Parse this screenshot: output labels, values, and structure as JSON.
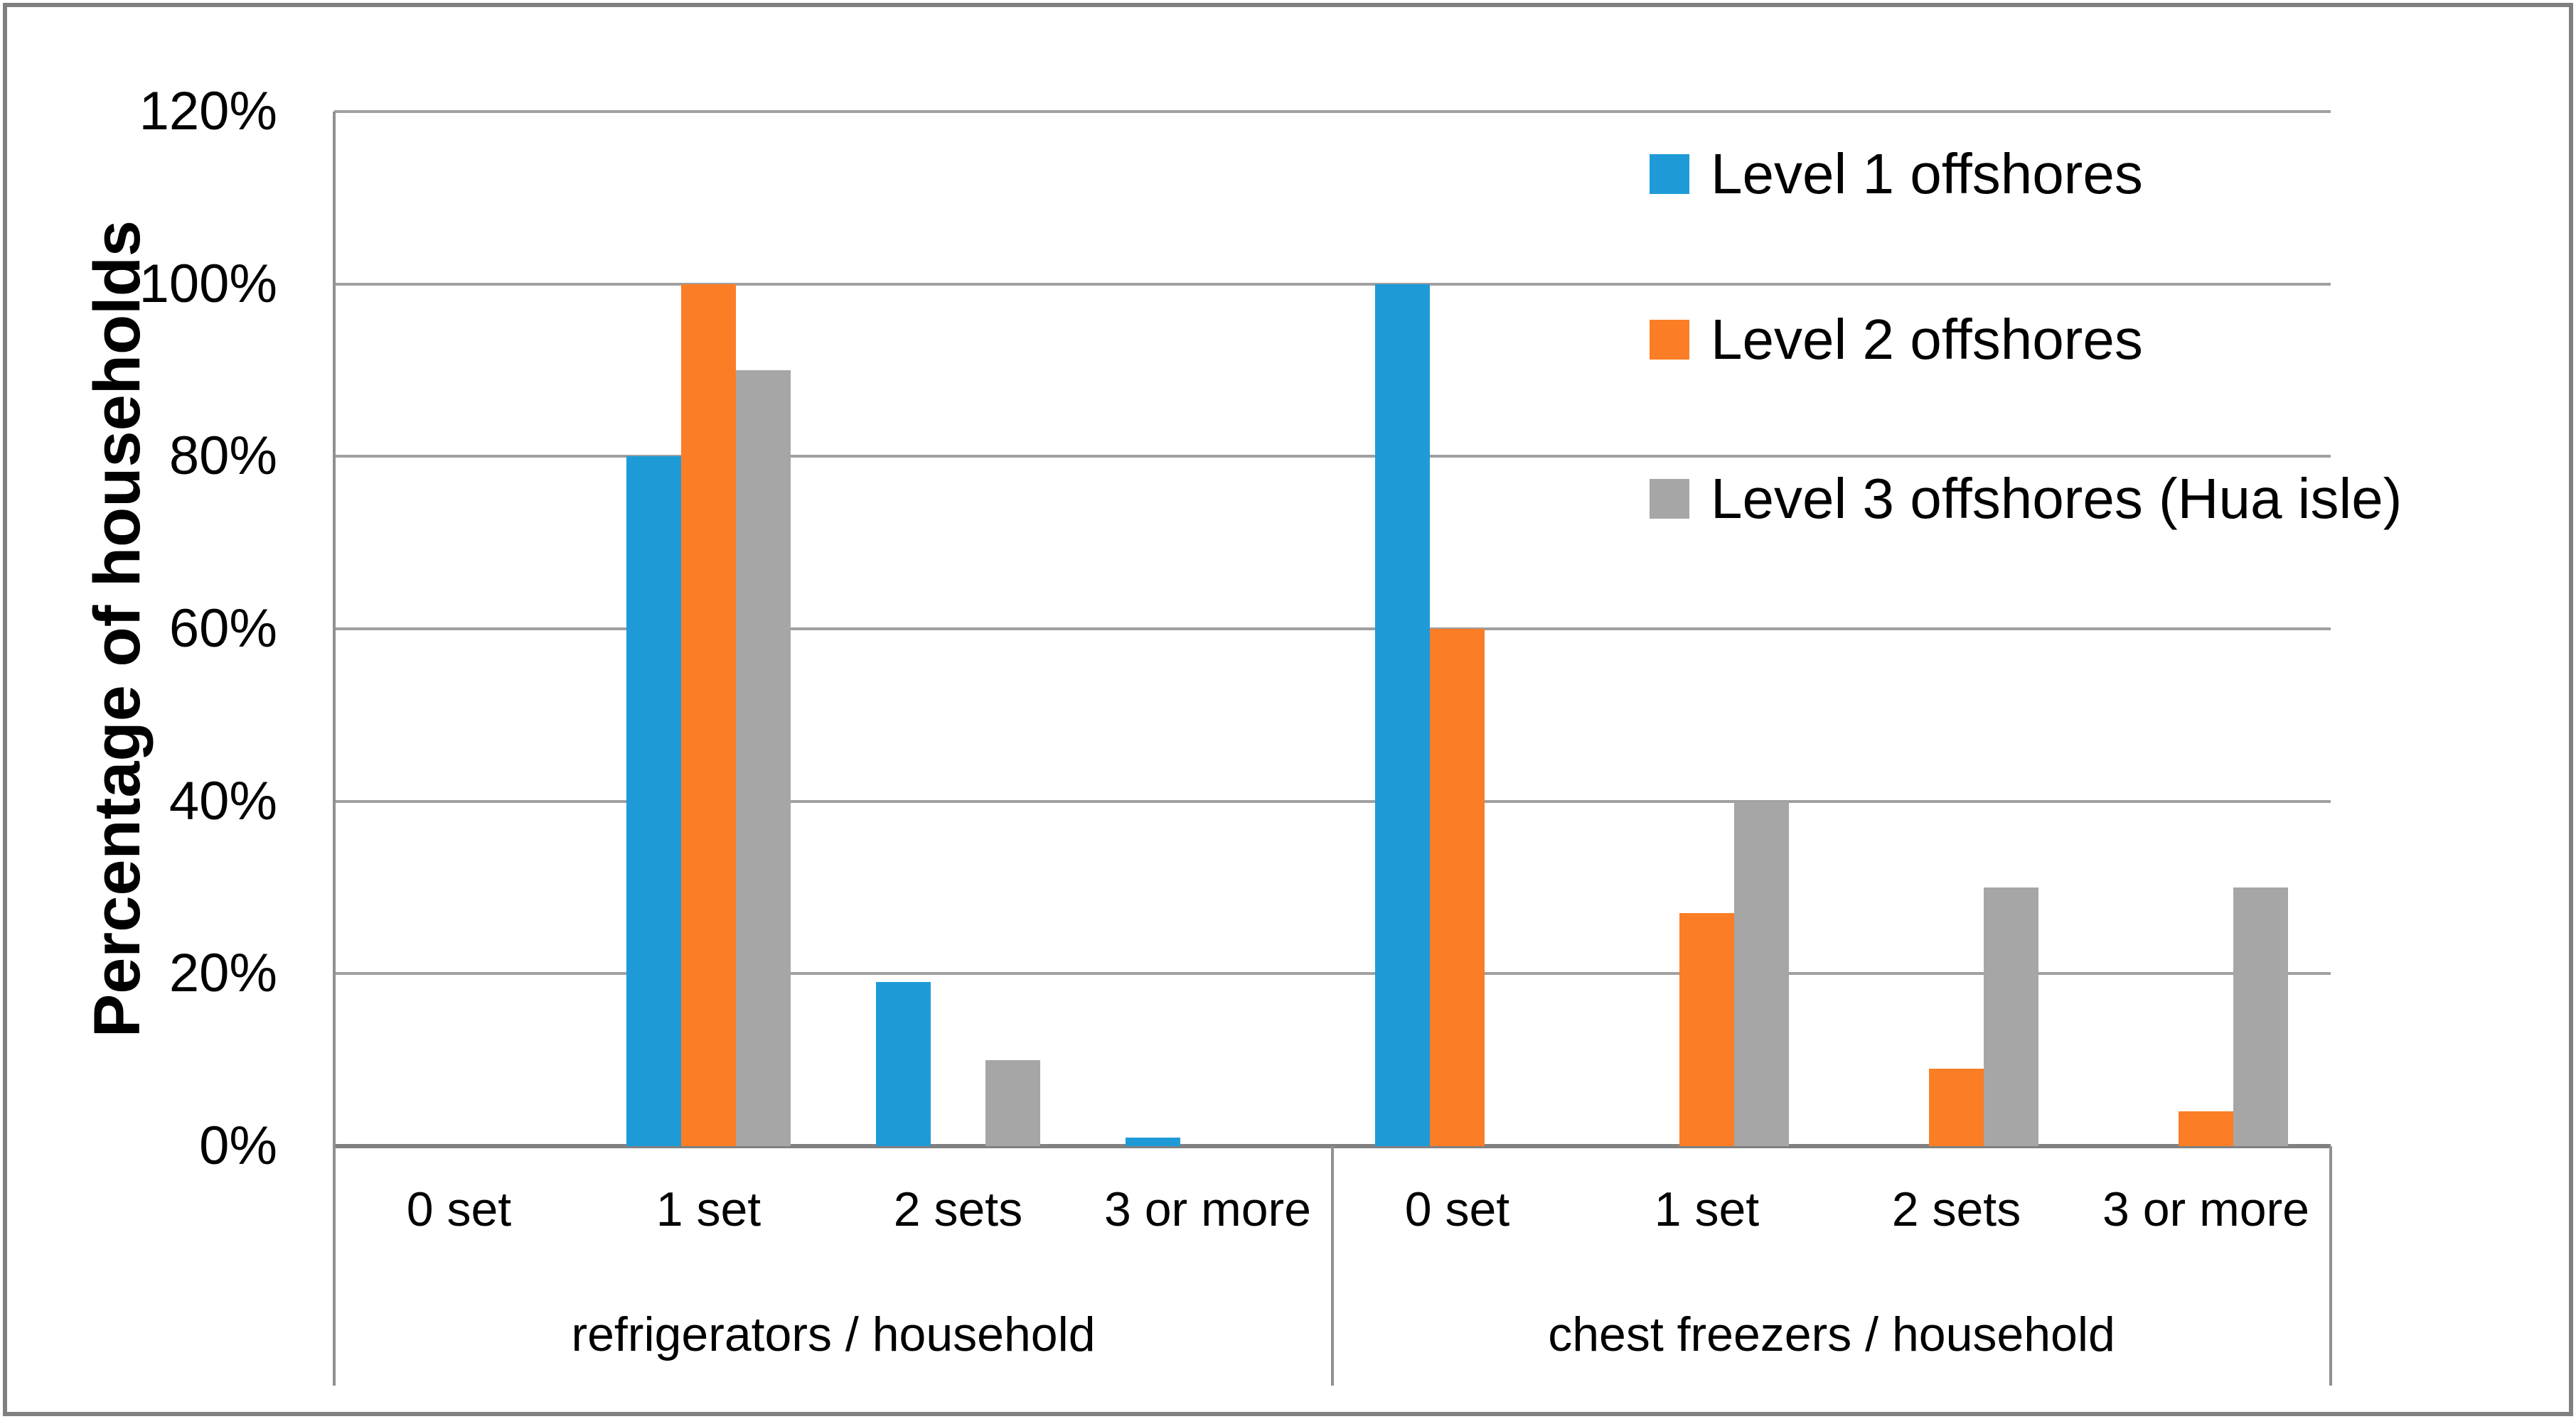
{
  "chart_data": {
    "type": "bar",
    "title": "",
    "ylabel": "Percentage of households",
    "xlabel": "",
    "y_axis": {
      "min": 0,
      "max": 120,
      "step": 20,
      "tick_labels": [
        "0%",
        "20%",
        "40%",
        "60%",
        "80%",
        "100%",
        "120%"
      ],
      "unit": "%"
    },
    "categories": [
      "0 set",
      "1 set",
      "2 sets",
      "3 or more"
    ],
    "groups": [
      {
        "label": "refrigerators / household"
      },
      {
        "label": "chest freezers / household"
      }
    ],
    "series": [
      {
        "name": "Level 1 offshores",
        "color": "#1E9BD7",
        "values": [
          0,
          80,
          19,
          1,
          100,
          0,
          0,
          0
        ]
      },
      {
        "name": "Level 2 offshores",
        "color": "#FB7D26",
        "values": [
          0,
          100,
          0,
          0,
          60,
          27,
          9,
          4
        ]
      },
      {
        "name": "Level 3 offshores (Hua isle)",
        "color": "#A6A6A6",
        "values": [
          0,
          90,
          10,
          0,
          0,
          40,
          30,
          30
        ]
      }
    ],
    "values_unit": "%",
    "legend_position": "inside-top-right",
    "grid": true,
    "ylim": [
      0,
      120
    ]
  },
  "colors": {
    "background": "#FFFFFF",
    "frame": "#7F7F7F",
    "gridline": "#A0A0A0",
    "axis_line": "#808080",
    "separator": "#909090",
    "text": "#000000"
  }
}
